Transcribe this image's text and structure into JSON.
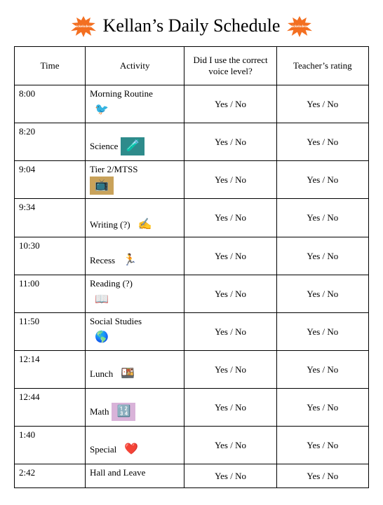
{
  "title": "Kellan’s Daily Schedule",
  "splat_color": "#f36f21",
  "splat_text_color": "#ffffff",
  "splat_label": "nickelodeon",
  "columns": [
    "Time",
    "Activity",
    "Did I use the correct voice level?",
    "Teacher’s rating"
  ],
  "yes_no": "Yes   /   No",
  "rows": [
    {
      "time": "8:00",
      "activity": "Morning Routine",
      "icon": "🐦",
      "icon_bg": "#ffffff",
      "layout": "below"
    },
    {
      "time": "8:20",
      "activity": "Science",
      "icon": "🧪",
      "icon_bg": "#2e8b8b",
      "layout": "inline"
    },
    {
      "time": "9:04",
      "activity": "Tier 2/MTSS",
      "icon": "📺",
      "icon_bg": "#c9a25a",
      "layout": "below"
    },
    {
      "time": "9:34",
      "activity": "Writing (?)",
      "icon": "✍️",
      "icon_bg": "#ffffff",
      "layout": "inline-after"
    },
    {
      "time": "10:30",
      "activity": "Recess",
      "icon": "🏃",
      "icon_bg": "#ffffff",
      "layout": "inline"
    },
    {
      "time": "11:00",
      "activity": "Reading (?)",
      "icon": "📖",
      "icon_bg": "#ffffff",
      "layout": "below"
    },
    {
      "time": "11:50",
      "activity": "Social Studies",
      "icon": "🌎",
      "icon_bg": "#ffffff",
      "layout": "below"
    },
    {
      "time": "12:14",
      "activity": "Lunch",
      "icon": "🍱",
      "icon_bg": "#ffffff",
      "layout": "inline"
    },
    {
      "time": "12:44",
      "activity": "Math",
      "icon": "🔢",
      "icon_bg": "#d9b3d9",
      "layout": "inline"
    },
    {
      "time": "1:40",
      "activity": "Special",
      "icon": "❤️",
      "icon_bg": "#ffffff",
      "layout": "inline"
    },
    {
      "time": "2:42",
      "activity": "Hall and Leave",
      "icon": "",
      "icon_bg": "#ffffff",
      "layout": "none",
      "short": true
    }
  ]
}
